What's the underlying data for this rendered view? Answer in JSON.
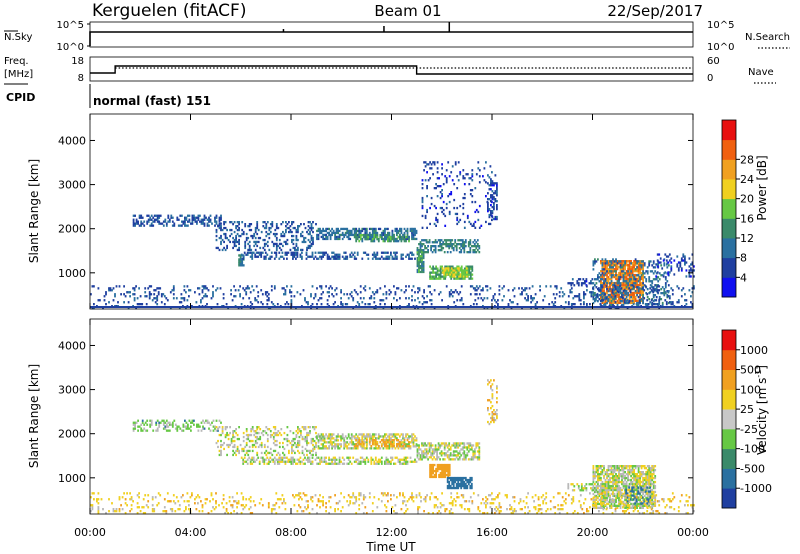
{
  "header": {
    "station": "Kerguelen (fitACF)",
    "beam": "Beam 01",
    "date": "22/Sep/2017"
  },
  "top_panels": {
    "nsky_label": "N.Sky",
    "nsky_ticks": [
      "10^5",
      "10^0"
    ],
    "nsearch_label": "N.Search",
    "nsearch_ticks": [
      "10^5",
      "10^0"
    ],
    "freq_label": "Freq.",
    "freq_unit": "[MHz]",
    "freq_ticks": [
      "18",
      "8"
    ],
    "nave_label": "Nave",
    "nave_ticks": [
      "60",
      "0"
    ],
    "cpid_label": "CPID",
    "cpid_value": "normal (fast) 151"
  },
  "colors": {
    "power_scale": [
      "#1010f0",
      "#1f3fa0",
      "#2a70a0",
      "#3a8a6a",
      "#66c844",
      "#f0d020",
      "#f0a020",
      "#f06010",
      "#e81010"
    ],
    "velocity_scale": [
      "#1f3fa0",
      "#2a70a0",
      "#3a8a6a",
      "#66c844",
      "#c8c8c8",
      "#f0d020",
      "#f0a020",
      "#f06010",
      "#e81010"
    ],
    "ground_scatter": "#b8b8b8"
  },
  "chart_data": [
    {
      "type": "heatmap",
      "title": "Power",
      "xlabel": "Time UT",
      "ylabel": "Slant Range [km]",
      "x_ticks": [
        "00:00",
        "04:00",
        "08:00",
        "12:00",
        "16:00",
        "20:00",
        "00:00"
      ],
      "y_ticks": [
        "1000",
        "2000",
        "3000",
        "4000"
      ],
      "xlim_hours": [
        0,
        24
      ],
      "ylim_km": [
        180,
        4600
      ],
      "colorbar_label": "Power [dB]",
      "colorbar_ticks": [
        "4",
        "8",
        "12",
        "16",
        "20",
        "24",
        "28"
      ],
      "colorbar_range_db": [
        0,
        32
      ],
      "regions": [
        {
          "t0": 1.7,
          "t1": 5.2,
          "r0": 2050,
          "r1": 2300,
          "db": 8,
          "density": 0.45
        },
        {
          "t0": 5.0,
          "t1": 9.0,
          "r0": 1500,
          "r1": 2150,
          "db": 8,
          "density": 0.3
        },
        {
          "t0": 5.9,
          "t1": 6.1,
          "r0": 1150,
          "r1": 1400,
          "db": 12,
          "density": 0.9
        },
        {
          "t0": 6.0,
          "t1": 13.0,
          "r0": 1300,
          "r1": 1450,
          "db": 8,
          "density": 0.45
        },
        {
          "t0": 9.0,
          "t1": 13.0,
          "r0": 1750,
          "r1": 2000,
          "db": 10,
          "density": 0.6
        },
        {
          "t0": 10.5,
          "t1": 12.7,
          "r0": 1700,
          "r1": 1850,
          "db": 14,
          "density": 0.6
        },
        {
          "t0": 13.0,
          "t1": 15.5,
          "r0": 1450,
          "r1": 1750,
          "db": 12,
          "density": 0.55
        },
        {
          "t0": 13.0,
          "t1": 13.3,
          "r0": 1000,
          "r1": 1500,
          "db": 14,
          "density": 0.8
        },
        {
          "t0": 13.5,
          "t1": 15.2,
          "r0": 850,
          "r1": 1150,
          "db": 16,
          "density": 0.8
        },
        {
          "t0": 14.0,
          "t1": 15.0,
          "r0": 900,
          "r1": 1100,
          "db": 20,
          "density": 0.7
        },
        {
          "t0": 13.2,
          "t1": 16.0,
          "r0": 2000,
          "r1": 3500,
          "db": 6,
          "density": 0.12
        },
        {
          "t0": 15.8,
          "t1": 16.2,
          "r0": 2200,
          "r1": 3200,
          "db": 6,
          "density": 0.35
        },
        {
          "t0": 19.0,
          "t1": 20.0,
          "r0": 700,
          "r1": 850,
          "db": 6,
          "density": 0.35
        },
        {
          "t0": 20.3,
          "t1": 22.0,
          "r0": 300,
          "r1": 1250,
          "db": 28,
          "density": 0.8
        },
        {
          "t0": 20.0,
          "t1": 23.0,
          "r0": 250,
          "r1": 1300,
          "db": 10,
          "density": 0.3
        },
        {
          "t0": 22.5,
          "t1": 24.0,
          "r0": 900,
          "r1": 1400,
          "db": 6,
          "density": 0.2
        },
        {
          "t0": 0.0,
          "t1": 24.0,
          "r0": 180,
          "r1": 700,
          "db": 7,
          "density": 0.15
        }
      ]
    },
    {
      "type": "heatmap",
      "title": "Velocity",
      "xlabel": "Time UT",
      "ylabel": "Slant Range [km]",
      "x_ticks": [
        "00:00",
        "04:00",
        "08:00",
        "12:00",
        "16:00",
        "20:00",
        "00:00"
      ],
      "y_ticks": [
        "1000",
        "2000",
        "3000",
        "4000"
      ],
      "xlim_hours": [
        0,
        24
      ],
      "ylim_km": [
        180,
        4600
      ],
      "colorbar_label": "Velocity [m s^-1]",
      "colorbar_ticks": [
        "1000",
        "500",
        "100",
        "25",
        "-25",
        "-100",
        "-500",
        "-1000"
      ],
      "regions": [
        {
          "t0": 1.7,
          "t1": 5.2,
          "r0": 2050,
          "r1": 2300,
          "vel": 50,
          "density": 0.35
        },
        {
          "t0": 5.0,
          "t1": 9.0,
          "r0": 1500,
          "r1": 2150,
          "vel": 0,
          "density": 0.3
        },
        {
          "t0": 6.0,
          "t1": 13.0,
          "r0": 1300,
          "r1": 1450,
          "vel": 0,
          "density": 0.5
        },
        {
          "t0": 9.0,
          "t1": 13.0,
          "r0": 1650,
          "r1": 2000,
          "vel": 0,
          "density": 0.6
        },
        {
          "t0": 10.5,
          "t1": 12.7,
          "r0": 1700,
          "r1": 1850,
          "vel": -150,
          "density": 0.4
        },
        {
          "t0": 13.0,
          "t1": 15.5,
          "r0": 1400,
          "r1": 1800,
          "vel": 0,
          "density": 0.6
        },
        {
          "t0": 13.5,
          "t1": 14.3,
          "r0": 1000,
          "r1": 1300,
          "vel": -300,
          "density": 0.8
        },
        {
          "t0": 14.2,
          "t1": 15.2,
          "r0": 750,
          "r1": 1000,
          "vel": 200,
          "density": 0.8
        },
        {
          "t0": 15.8,
          "t1": 16.2,
          "r0": 2200,
          "r1": 3200,
          "vel": -60,
          "density": 0.3
        },
        {
          "t0": 19.0,
          "t1": 20.0,
          "r0": 700,
          "r1": 850,
          "vel": 0,
          "density": 0.3
        },
        {
          "t0": 20.0,
          "t1": 22.5,
          "r0": 300,
          "r1": 1250,
          "vel": 0,
          "density": 0.75
        },
        {
          "t0": 21.3,
          "t1": 22.3,
          "r0": 400,
          "r1": 800,
          "vel": 150,
          "density": 0.35
        },
        {
          "t0": 0.0,
          "t1": 24.0,
          "r0": 180,
          "r1": 650,
          "vel": -60,
          "density": 0.15
        }
      ]
    }
  ]
}
